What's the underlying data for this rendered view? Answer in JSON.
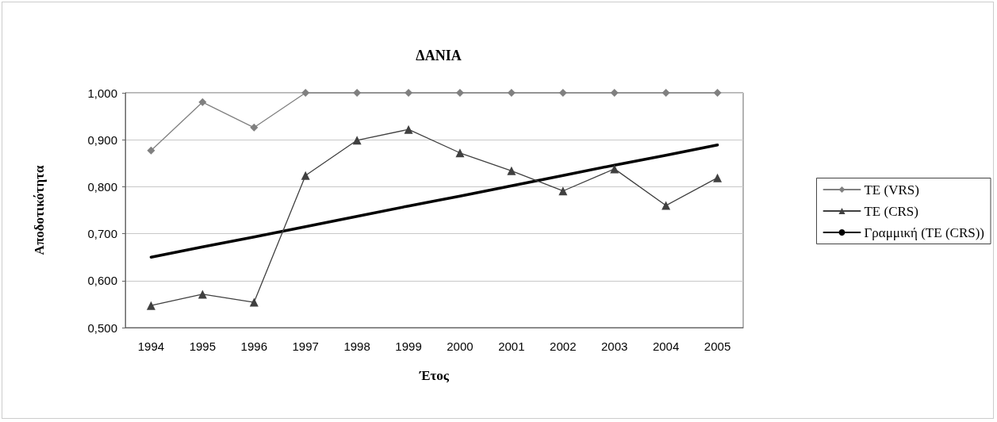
{
  "chart_data": {
    "type": "line",
    "title": "ΔΑΝΙΑ",
    "xlabel": "Έτος",
    "ylabel": "Αποδοτικότητα",
    "categories": [
      "1994",
      "1995",
      "1996",
      "1997",
      "1998",
      "1999",
      "2000",
      "2001",
      "2002",
      "2003",
      "2004",
      "2005"
    ],
    "series": [
      {
        "name": "TE (VRS)",
        "color": "#808080",
        "marker": "diamond",
        "values": [
          0.877,
          0.98,
          0.926,
          1.0,
          1.0,
          1.0,
          1.0,
          1.0,
          1.0,
          1.0,
          1.0,
          1.0
        ]
      },
      {
        "name": "TE (CRS)",
        "color": "#404040",
        "marker": "triangle",
        "values": [
          0.547,
          0.571,
          0.554,
          0.824,
          0.899,
          0.922,
          0.872,
          0.834,
          0.791,
          0.838,
          0.76,
          0.819
        ]
      },
      {
        "name": "Γραμμική (TE (CRS))",
        "color": "#000000",
        "marker": "none",
        "values": [
          0.65,
          0.672,
          0.693,
          0.715,
          0.737,
          0.759,
          0.78,
          0.802,
          0.824,
          0.846,
          0.867,
          0.889
        ]
      }
    ],
    "ylim": [
      0.5,
      1.0
    ],
    "yticks": [
      {
        "value": 0.5,
        "label": "0,500"
      },
      {
        "value": 0.6,
        "label": "0,600"
      },
      {
        "value": 0.7,
        "label": "0,700"
      },
      {
        "value": 0.8,
        "label": "0,800"
      },
      {
        "value": 0.9,
        "label": "0,900"
      },
      {
        "value": 1.0,
        "label": "1,000"
      }
    ],
    "grid": "y",
    "legend": "right"
  }
}
